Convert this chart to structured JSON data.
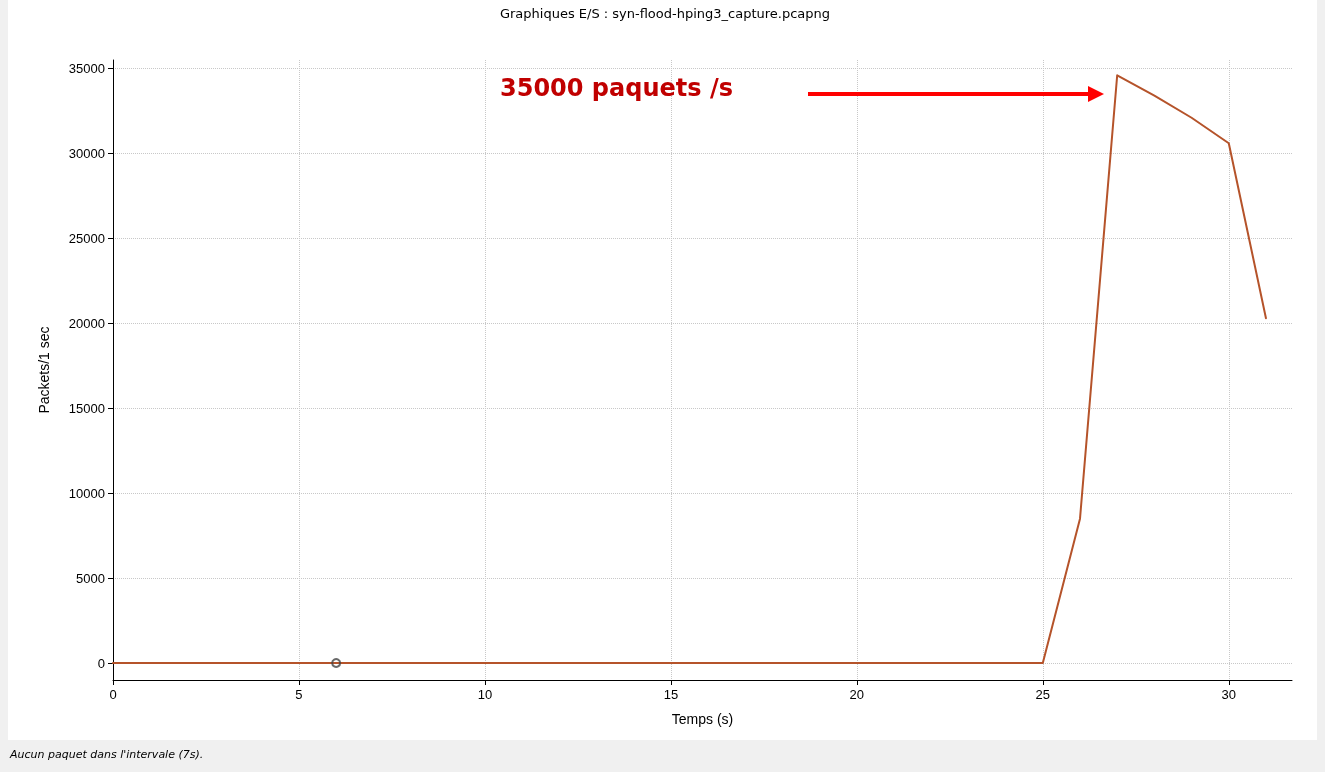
{
  "chart_data": {
    "type": "line",
    "title": "Graphiques E/S : syn-flood-hping3_capture.pcapng",
    "xlabel": "Temps (s)",
    "ylabel": "Packets/1 sec",
    "annotations": [
      "35000 paquets /s",
      "Aucun paquet dans l'intervale (7s)."
    ],
    "series": [
      {
        "color": "#b5532a",
        "x": [
          0,
          1,
          2,
          3,
          4,
          5,
          6,
          7,
          8,
          9,
          10,
          11,
          12,
          13,
          14,
          15,
          16,
          17,
          18,
          19,
          20,
          21,
          22,
          23,
          24,
          25,
          26,
          27,
          28,
          29,
          30,
          31
        ],
        "values": [
          0,
          0,
          0,
          0,
          0,
          0,
          0,
          0,
          0,
          0,
          0,
          0,
          0,
          0,
          0,
          0,
          0,
          0,
          0,
          0,
          0,
          0,
          0,
          0,
          0,
          0,
          8500,
          34600,
          33400,
          32100,
          30600,
          20300
        ]
      },
      {
        "type": "scatter",
        "color": "#444444",
        "x": [
          6
        ],
        "values": [
          0
        ],
        "marker": "circle"
      }
    ],
    "xlim": [
      0,
      31.7
    ],
    "xticks": [
      0,
      5,
      10,
      15,
      20,
      25,
      30
    ],
    "ylim": [
      -1000,
      35500
    ],
    "yticks": [
      0,
      5000,
      10000,
      15000,
      20000,
      25000,
      30000,
      35000
    ],
    "grid": true,
    "marker": "none",
    "line_style": "solid"
  }
}
